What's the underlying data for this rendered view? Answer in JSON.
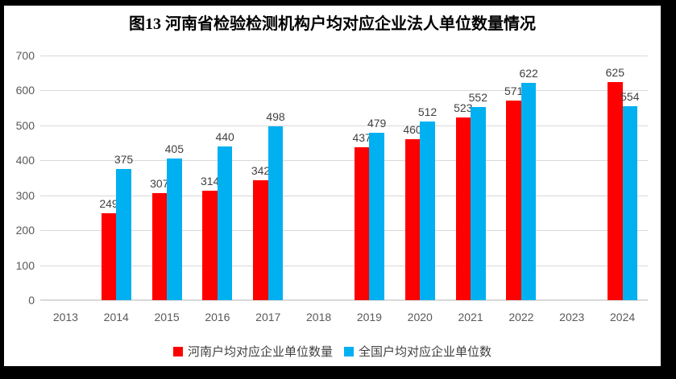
{
  "frame": {
    "background": "#000000",
    "page_background": "#ffffff"
  },
  "chart_data": {
    "type": "bar",
    "title": "图13 河南省检验检测机构户均对应企业法人单位数量情况",
    "categories": [
      "2013",
      "2014",
      "2015",
      "2016",
      "2017",
      "2018",
      "2019",
      "2020",
      "2021",
      "2022",
      "2023",
      "2024"
    ],
    "series": [
      {
        "name": "河南户均对应企业单位数量",
        "color": "#FF0000",
        "values": [
          null,
          249,
          307,
          314,
          342,
          null,
          437,
          460,
          523,
          571,
          null,
          625
        ]
      },
      {
        "name": "全国户均对应企业单位数",
        "color": "#00B0F0",
        "values": [
          null,
          375,
          405,
          440,
          498,
          null,
          479,
          512,
          552,
          622,
          null,
          554
        ]
      }
    ],
    "xlabel": "",
    "ylabel": "",
    "ylim": [
      0,
      700
    ],
    "yticks": [
      0,
      100,
      200,
      300,
      400,
      500,
      600,
      700
    ],
    "grid": true,
    "legend_position": "bottom",
    "colors": {
      "gridline": "#D9D9D9",
      "axis_text": "#595959",
      "data_label": "#404040",
      "legend_text": "#404040",
      "title": "#000000"
    }
  }
}
